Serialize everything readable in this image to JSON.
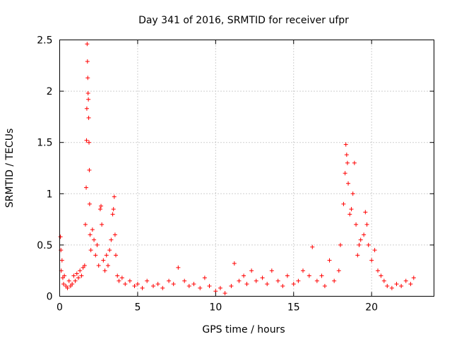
{
  "chart_data": {
    "type": "scatter",
    "title": "Day 341 of 2016, SRMTID for receiver ufpr",
    "xlabel": "GPS time / hours",
    "ylabel": "SRMTID / TECUs",
    "xlim": [
      0,
      24
    ],
    "ylim": [
      0,
      2.5
    ],
    "xticks": [
      0,
      5,
      10,
      15,
      20
    ],
    "xtick_labels": [
      "0",
      "5",
      "10",
      "15",
      "20"
    ],
    "yticks": [
      0,
      0.5,
      1,
      1.5,
      2,
      2.5
    ],
    "ytick_labels": [
      "0",
      "0.5",
      "1",
      "1.5",
      "2",
      "2.5"
    ],
    "grid": true,
    "marker": "+",
    "color": "#ff0000",
    "series": [
      {
        "name": "SRMTID",
        "points": [
          [
            0.05,
            0.58
          ],
          [
            0.08,
            0.45
          ],
          [
            0.1,
            0.25
          ],
          [
            0.15,
            0.35
          ],
          [
            0.2,
            0.18
          ],
          [
            0.25,
            0.12
          ],
          [
            0.3,
            0.2
          ],
          [
            0.4,
            0.1
          ],
          [
            0.5,
            0.08
          ],
          [
            0.6,
            0.15
          ],
          [
            0.7,
            0.1
          ],
          [
            0.8,
            0.12
          ],
          [
            0.9,
            0.2
          ],
          [
            1.0,
            0.15
          ],
          [
            1.1,
            0.22
          ],
          [
            1.2,
            0.18
          ],
          [
            1.3,
            0.25
          ],
          [
            1.4,
            0.2
          ],
          [
            1.5,
            0.28
          ],
          [
            1.6,
            0.3
          ],
          [
            1.65,
            0.7
          ],
          [
            1.7,
            1.06
          ],
          [
            1.72,
            1.52
          ],
          [
            1.74,
            1.83
          ],
          [
            1.76,
            2.46
          ],
          [
            1.78,
            2.29
          ],
          [
            1.8,
            2.13
          ],
          [
            1.82,
            1.98
          ],
          [
            1.84,
            1.92
          ],
          [
            1.86,
            1.74
          ],
          [
            1.88,
            1.5
          ],
          [
            1.9,
            1.23
          ],
          [
            1.92,
            0.9
          ],
          [
            1.95,
            0.6
          ],
          [
            2.0,
            0.45
          ],
          [
            2.1,
            0.65
          ],
          [
            2.2,
            0.55
          ],
          [
            2.3,
            0.4
          ],
          [
            2.4,
            0.5
          ],
          [
            2.5,
            0.3
          ],
          [
            2.6,
            0.85
          ],
          [
            2.65,
            0.88
          ],
          [
            2.7,
            0.7
          ],
          [
            2.8,
            0.35
          ],
          [
            2.9,
            0.25
          ],
          [
            3.0,
            0.4
          ],
          [
            3.1,
            0.3
          ],
          [
            3.2,
            0.45
          ],
          [
            3.3,
            0.55
          ],
          [
            3.4,
            0.8
          ],
          [
            3.45,
            0.85
          ],
          [
            3.5,
            0.97
          ],
          [
            3.55,
            0.6
          ],
          [
            3.6,
            0.4
          ],
          [
            3.7,
            0.2
          ],
          [
            3.8,
            0.15
          ],
          [
            4.0,
            0.18
          ],
          [
            4.2,
            0.12
          ],
          [
            4.5,
            0.15
          ],
          [
            4.8,
            0.1
          ],
          [
            5.0,
            0.12
          ],
          [
            5.3,
            0.08
          ],
          [
            5.6,
            0.15
          ],
          [
            6.0,
            0.1
          ],
          [
            6.3,
            0.12
          ],
          [
            6.6,
            0.08
          ],
          [
            7.0,
            0.15
          ],
          [
            7.3,
            0.12
          ],
          [
            7.6,
            0.28
          ],
          [
            8.0,
            0.15
          ],
          [
            8.3,
            0.1
          ],
          [
            8.6,
            0.12
          ],
          [
            9.0,
            0.08
          ],
          [
            9.3,
            0.18
          ],
          [
            9.6,
            0.1
          ],
          [
            10.0,
            0.05
          ],
          [
            10.3,
            0.08
          ],
          [
            10.6,
            0.03
          ],
          [
            11.0,
            0.1
          ],
          [
            11.2,
            0.32
          ],
          [
            11.5,
            0.15
          ],
          [
            11.8,
            0.2
          ],
          [
            12.0,
            0.12
          ],
          [
            12.3,
            0.25
          ],
          [
            12.6,
            0.15
          ],
          [
            13.0,
            0.18
          ],
          [
            13.3,
            0.12
          ],
          [
            13.6,
            0.25
          ],
          [
            14.0,
            0.15
          ],
          [
            14.3,
            0.1
          ],
          [
            14.6,
            0.2
          ],
          [
            15.0,
            0.12
          ],
          [
            15.3,
            0.15
          ],
          [
            15.6,
            0.25
          ],
          [
            16.0,
            0.2
          ],
          [
            16.2,
            0.48
          ],
          [
            16.5,
            0.15
          ],
          [
            16.8,
            0.2
          ],
          [
            17.0,
            0.1
          ],
          [
            17.3,
            0.35
          ],
          [
            17.6,
            0.15
          ],
          [
            17.9,
            0.25
          ],
          [
            18.0,
            0.5
          ],
          [
            18.2,
            0.9
          ],
          [
            18.3,
            1.2
          ],
          [
            18.35,
            1.48
          ],
          [
            18.4,
            1.38
          ],
          [
            18.45,
            1.3
          ],
          [
            18.5,
            1.1
          ],
          [
            18.6,
            0.8
          ],
          [
            18.7,
            0.85
          ],
          [
            18.8,
            1.0
          ],
          [
            18.9,
            1.3
          ],
          [
            19.0,
            0.7
          ],
          [
            19.1,
            0.4
          ],
          [
            19.2,
            0.5
          ],
          [
            19.3,
            0.55
          ],
          [
            19.5,
            0.6
          ],
          [
            19.6,
            0.82
          ],
          [
            19.7,
            0.7
          ],
          [
            19.8,
            0.5
          ],
          [
            20.0,
            0.35
          ],
          [
            20.2,
            0.45
          ],
          [
            20.4,
            0.25
          ],
          [
            20.6,
            0.2
          ],
          [
            20.8,
            0.15
          ],
          [
            21.0,
            0.1
          ],
          [
            21.3,
            0.08
          ],
          [
            21.6,
            0.12
          ],
          [
            21.9,
            0.1
          ],
          [
            22.2,
            0.15
          ],
          [
            22.5,
            0.12
          ],
          [
            22.7,
            0.18
          ]
        ]
      }
    ]
  }
}
